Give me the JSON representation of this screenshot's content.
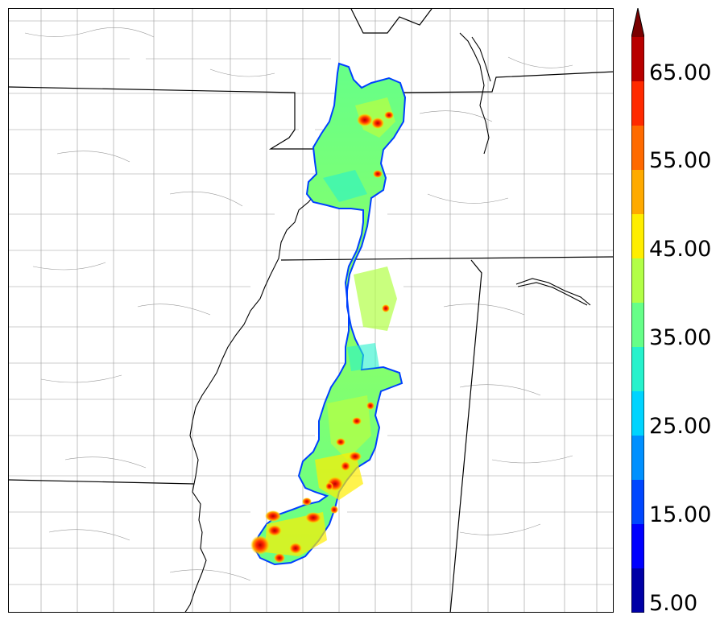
{
  "colorbar": {
    "labels": [
      "65.00",
      "55.00",
      "45.00",
      "35.00",
      "25.00",
      "15.00",
      "5.00"
    ],
    "levels": [
      5,
      10,
      15,
      20,
      25,
      30,
      35,
      40,
      45,
      50,
      55,
      60,
      65,
      70
    ],
    "colors": [
      "#0000a6",
      "#0000ff",
      "#0047ff",
      "#0090ff",
      "#00d4ff",
      "#26f2cc",
      "#66ff88",
      "#b2ff47",
      "#ffee00",
      "#ffaa00",
      "#ff6a00",
      "#ff2a00",
      "#b80000"
    ],
    "extend_color": "#7a0000"
  },
  "style": {
    "county_line_color": "#9a9a9a",
    "state_line_color": "#000000",
    "river_color": "#000000"
  }
}
